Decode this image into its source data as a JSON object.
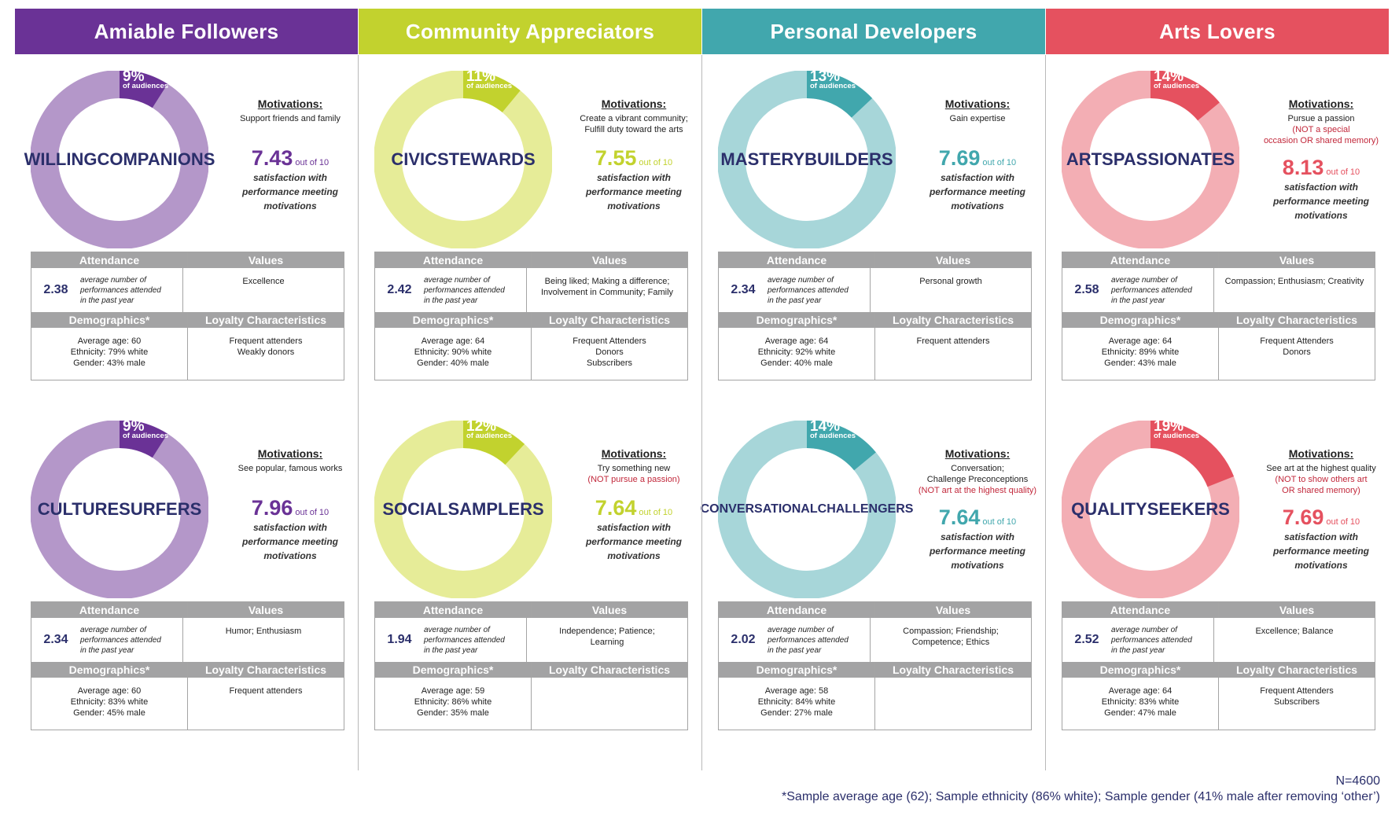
{
  "columns": [
    {
      "header": "Amiable Followers",
      "color": "#6a3296",
      "segments": [
        {
          "name": "WILLING COMPANIONS",
          "name_lines": [
            "WILLING",
            "COMPANIONS"
          ],
          "percent": 9,
          "percent_label": "9%",
          "of_audiences": "of audiences",
          "motivations_title": "Motivations:",
          "motivations": [
            "Support friends and family"
          ],
          "motivations_neg": [],
          "score": "7.43",
          "score_value": 7.43,
          "out_of": "out of 10",
          "sat_desc": [
            "satisfaction with",
            "performance meeting",
            "motivations"
          ],
          "attendance_header": "Attendance",
          "values_header": "Values",
          "attendance": "2.38",
          "attendance_desc": [
            "average number of",
            "performances attended",
            "in the past year"
          ],
          "values": [
            "Excellence"
          ],
          "demographics_header": "Demographics*",
          "loyalty_header": "Loyalty Characteristics",
          "demographics": [
            "Average age: 60",
            "Ethnicity: 79% white",
            "Gender: 43% male"
          ],
          "loyalty": [
            "Frequent attenders",
            "Weakly donors"
          ]
        },
        {
          "name": "CULTURE SURFERS",
          "name_lines": [
            "CULTURE",
            "SURFERS"
          ],
          "percent": 9,
          "percent_label": "9%",
          "of_audiences": "of audiences",
          "motivations_title": "Motivations:",
          "motivations": [
            "See popular, famous works"
          ],
          "motivations_neg": [],
          "score": "7.96",
          "score_value": 7.96,
          "out_of": "out of 10",
          "sat_desc": [
            "satisfaction with",
            "performance meeting",
            "motivations"
          ],
          "attendance_header": "Attendance",
          "values_header": "Values",
          "attendance": "2.34",
          "attendance_desc": [
            "average number of",
            "performances attended",
            "in the past year"
          ],
          "values": [
            "Humor; Enthusiasm"
          ],
          "demographics_header": "Demographics*",
          "loyalty_header": "Loyalty Characteristics",
          "demographics": [
            "Average age: 60",
            "Ethnicity: 83% white",
            "Gender: 45% male"
          ],
          "loyalty": [
            "Frequent attenders"
          ]
        }
      ]
    },
    {
      "header": "Community Appreciators",
      "color": "#c2d22e",
      "segments": [
        {
          "name": "CIVIC STEWARDS",
          "name_lines": [
            "CIVIC",
            "STEWARDS"
          ],
          "percent": 11,
          "percent_label": "11%",
          "of_audiences": "of audiences",
          "motivations_title": "Motivations:",
          "motivations": [
            "Create a vibrant community;",
            "Fulfill duty toward the arts"
          ],
          "motivations_neg": [],
          "score": "7.55",
          "score_value": 7.55,
          "out_of": "out of 10",
          "sat_desc": [
            "satisfaction with",
            "performance meeting",
            "motivations"
          ],
          "attendance_header": "Attendance",
          "values_header": "Values",
          "attendance": "2.42",
          "attendance_desc": [
            "average number of",
            "performances attended",
            "in the past year"
          ],
          "values": [
            "Being liked; Making a difference;",
            "Involvement in Community; Family"
          ],
          "demographics_header": "Demographics*",
          "loyalty_header": "Loyalty Characteristics",
          "demographics": [
            "Average age: 64",
            "Ethnicity: 90% white",
            "Gender: 40% male"
          ],
          "loyalty": [
            "Frequent Attenders",
            "Donors",
            "Subscribers"
          ]
        },
        {
          "name": "SOCIAL SAMPLERS",
          "name_lines": [
            "SOCIAL",
            "SAMPLERS"
          ],
          "percent": 12,
          "percent_label": "12%",
          "of_audiences": "of audiences",
          "motivations_title": "Motivations:",
          "motivations": [
            "Try something new"
          ],
          "motivations_neg": [
            "(NOT pursue a passion)"
          ],
          "score": "7.64",
          "score_value": 7.64,
          "out_of": "out of 10",
          "sat_desc": [
            "satisfaction with",
            "performance meeting",
            "motivations"
          ],
          "attendance_header": "Attendance",
          "values_header": "Values",
          "attendance": "1.94",
          "attendance_desc": [
            "average number of",
            "performances attended",
            "in the past year"
          ],
          "values": [
            "Independence; Patience;",
            "Learning"
          ],
          "demographics_header": "Demographics*",
          "loyalty_header": "Loyalty Characteristics",
          "demographics": [
            "Average age: 59",
            "Ethnicity: 86% white",
            "Gender: 35% male"
          ],
          "loyalty": []
        }
      ]
    },
    {
      "header": "Personal Developers",
      "color": "#41a7ad",
      "segments": [
        {
          "name": "MASTERY BUILDERS",
          "name_lines": [
            "MASTERY",
            "BUILDERS"
          ],
          "percent": 13,
          "percent_label": "13%",
          "of_audiences": "of audiences",
          "motivations_title": "Motivations:",
          "motivations": [
            "Gain expertise"
          ],
          "motivations_neg": [],
          "score": "7.69",
          "score_value": 7.69,
          "out_of": "out of 10",
          "sat_desc": [
            "satisfaction with",
            "performance meeting",
            "motivations"
          ],
          "attendance_header": "Attendance",
          "values_header": "Values",
          "attendance": "2.34",
          "attendance_desc": [
            "average number of",
            "performances attended",
            "in the past year"
          ],
          "values": [
            "Personal growth"
          ],
          "demographics_header": "Demographics*",
          "loyalty_header": "Loyalty Characteristics",
          "demographics": [
            "Average age: 64",
            "Ethnicity: 92% white",
            "Gender: 40% male"
          ],
          "loyalty": [
            "Frequent attenders"
          ]
        },
        {
          "name": "CONVERSATIONAL CHALLENGERS",
          "name_lines": [
            "CONVERSATIONAL",
            "CHALLENGERS"
          ],
          "percent": 14,
          "percent_label": "14%",
          "of_audiences": "of audiences",
          "motivations_title": "Motivations:",
          "motivations": [
            "Conversation;",
            "Challenge Preconceptions"
          ],
          "motivations_neg": [
            "(NOT art at the highest quality)"
          ],
          "score": "7.64",
          "score_value": 7.64,
          "out_of": "out of 10",
          "sat_desc": [
            "satisfaction with",
            "performance meeting",
            "motivations"
          ],
          "attendance_header": "Attendance",
          "values_header": "Values",
          "attendance": "2.02",
          "attendance_desc": [
            "average number of",
            "performances attended",
            "in the past year"
          ],
          "values": [
            "Compassion; Friendship;",
            "Competence; Ethics"
          ],
          "demographics_header": "Demographics*",
          "loyalty_header": "Loyalty Characteristics",
          "demographics": [
            "Average age: 58",
            "Ethnicity: 84% white",
            "Gender: 27% male"
          ],
          "loyalty": []
        }
      ]
    },
    {
      "header": "Arts Lovers",
      "color": "#e5515f",
      "segments": [
        {
          "name": "ARTS PASSIONATES",
          "name_lines": [
            "ARTS",
            "PASSIONATES"
          ],
          "percent": 14,
          "percent_label": "14%",
          "of_audiences": "of audiences",
          "motivations_title": "Motivations:",
          "motivations": [
            "Pursue a passion"
          ],
          "motivations_neg": [
            "(NOT a special",
            "occasion OR shared memory)"
          ],
          "score": "8.13",
          "score_value": 8.13,
          "out_of": "out of 10",
          "sat_desc": [
            "satisfaction with",
            "performance meeting",
            "motivations"
          ],
          "attendance_header": "Attendance",
          "values_header": "Values",
          "attendance": "2.58",
          "attendance_desc": [
            "average number of",
            "performances attended",
            "in the past year"
          ],
          "values": [
            "Compassion; Enthusiasm; Creativity"
          ],
          "demographics_header": "Demographics*",
          "loyalty_header": "Loyalty Characteristics",
          "demographics": [
            "Average age: 64",
            "Ethnicity: 89% white",
            "Gender: 43% male"
          ],
          "loyalty": [
            "Frequent Attenders",
            "Donors"
          ]
        },
        {
          "name": "QUALITY SEEKERS",
          "name_lines": [
            "QUALITY",
            "SEEKERS"
          ],
          "percent": 19,
          "percent_label": "19%",
          "of_audiences": "of audiences",
          "motivations_title": "Motivations:",
          "motivations": [
            "See art at the highest quality"
          ],
          "motivations_neg": [
            "(NOT to show others art",
            "OR shared memory)"
          ],
          "score": "7.69",
          "score_value": 7.69,
          "out_of": "out of 10",
          "sat_desc": [
            "satisfaction with",
            "performance meeting",
            "motivations"
          ],
          "attendance_header": "Attendance",
          "values_header": "Values",
          "attendance": "2.52",
          "attendance_desc": [
            "average number of",
            "performances attended",
            "in the past year"
          ],
          "values": [
            "Excellence; Balance"
          ],
          "demographics_header": "Demographics*",
          "loyalty_header": "Loyalty Characteristics",
          "demographics": [
            "Average age: 64",
            "Ethnicity: 83% white",
            "Gender: 47% male"
          ],
          "loyalty": [
            "Frequent Attenders",
            "Subscribers"
          ]
        }
      ]
    }
  ],
  "ring_colors": {
    "Amiable Followers": {
      "light": "#b497c9",
      "dark": "#6a3296"
    },
    "Community Appreciators": {
      "light": "#e6ec98",
      "dark": "#c2d22e"
    },
    "Personal Developers": {
      "light": "#a7d6d9",
      "dark": "#41a7ad"
    },
    "Arts Lovers": {
      "light": "#f3aeb4",
      "dark": "#e5515f"
    }
  },
  "footer": {
    "n": "N=4600",
    "note": "*Sample average age (62); Sample ethnicity (86% white); Sample gender (41% male after removing ‘other’)"
  }
}
